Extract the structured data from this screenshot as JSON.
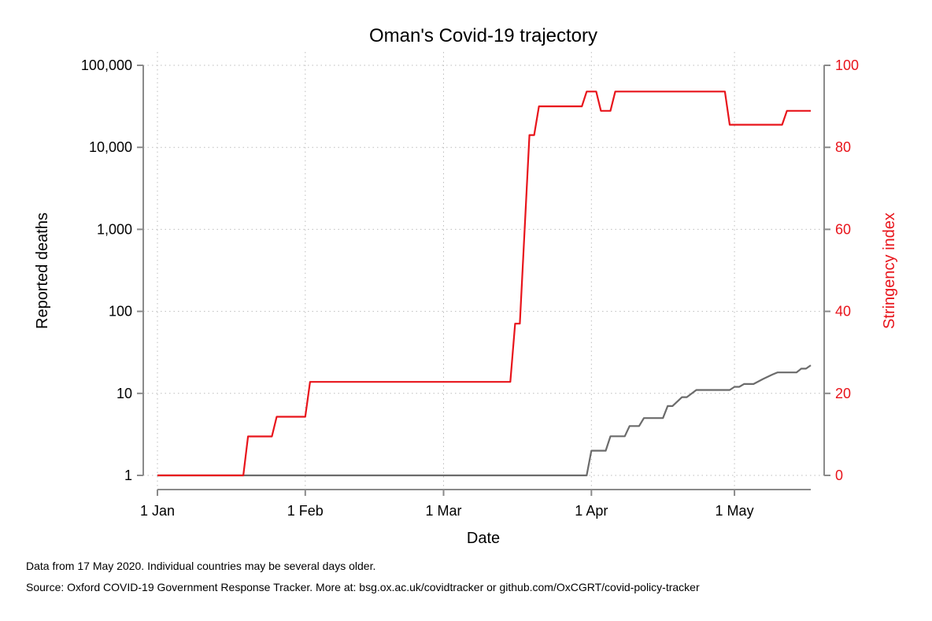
{
  "chart_data": {
    "type": "line",
    "title": "Oman's Covid-19 trajectory",
    "xlabel": "Date",
    "ylabel_left": "Reported deaths",
    "ylabel_right": "Stringency index",
    "x_ticks": [
      {
        "date": "2020-01-01",
        "label": "1 Jan"
      },
      {
        "date": "2020-02-01",
        "label": "1 Feb"
      },
      {
        "date": "2020-03-01",
        "label": "1 Mar"
      },
      {
        "date": "2020-04-01",
        "label": "1 Apr"
      },
      {
        "date": "2020-05-01",
        "label": "1 May"
      }
    ],
    "xlim": [
      "2020-01-01",
      "2020-05-17"
    ],
    "y_left_scale": "log",
    "y_left_lim": [
      1,
      100000
    ],
    "y_left_ticks": [
      {
        "value": 1,
        "label": "1"
      },
      {
        "value": 10,
        "label": "10"
      },
      {
        "value": 100,
        "label": "100"
      },
      {
        "value": 1000,
        "label": "1,000"
      },
      {
        "value": 10000,
        "label": "10,000"
      },
      {
        "value": 100000,
        "label": "100,000"
      }
    ],
    "y_right_lim": [
      0,
      100
    ],
    "y_right_ticks": [
      {
        "value": 0,
        "label": "0"
      },
      {
        "value": 20,
        "label": "20"
      },
      {
        "value": 40,
        "label": "40"
      },
      {
        "value": 60,
        "label": "60"
      },
      {
        "value": 80,
        "label": "80"
      },
      {
        "value": 100,
        "label": "100"
      }
    ],
    "grid": true,
    "series": [
      {
        "axis": "left",
        "color": "#6b6b6b",
        "points": [
          [
            "2020-01-01",
            1
          ],
          [
            "2020-03-31",
            1
          ],
          [
            "2020-04-01",
            2
          ],
          [
            "2020-04-03",
            2
          ],
          [
            "2020-04-04",
            2
          ],
          [
            "2020-04-05",
            3
          ],
          [
            "2020-04-08",
            3
          ],
          [
            "2020-04-09",
            4
          ],
          [
            "2020-04-11",
            4
          ],
          [
            "2020-04-12",
            5
          ],
          [
            "2020-04-16",
            5
          ],
          [
            "2020-04-17",
            7
          ],
          [
            "2020-04-18",
            7
          ],
          [
            "2020-04-20",
            9
          ],
          [
            "2020-04-21",
            9
          ],
          [
            "2020-04-23",
            11
          ],
          [
            "2020-04-27",
            11
          ],
          [
            "2020-04-29",
            11
          ],
          [
            "2020-04-30",
            11
          ],
          [
            "2020-05-01",
            12
          ],
          [
            "2020-05-02",
            12
          ],
          [
            "2020-05-03",
            13
          ],
          [
            "2020-05-05",
            13
          ],
          [
            "2020-05-07",
            15
          ],
          [
            "2020-05-09",
            17
          ],
          [
            "2020-05-10",
            18
          ],
          [
            "2020-05-14",
            18
          ],
          [
            "2020-05-15",
            20
          ],
          [
            "2020-05-16",
            20
          ],
          [
            "2020-05-17",
            22
          ]
        ]
      },
      {
        "axis": "right",
        "color": "#e8141b",
        "points": [
          [
            "2020-01-01",
            0
          ],
          [
            "2020-01-19",
            0
          ],
          [
            "2020-01-20",
            9.5
          ],
          [
            "2020-01-25",
            9.5
          ],
          [
            "2020-01-26",
            14.3
          ],
          [
            "2020-02-01",
            14.3
          ],
          [
            "2020-02-02",
            22.8
          ],
          [
            "2020-03-15",
            22.8
          ],
          [
            "2020-03-16",
            37
          ],
          [
            "2020-03-17",
            37
          ],
          [
            "2020-03-18",
            60
          ],
          [
            "2020-03-19",
            83
          ],
          [
            "2020-03-20",
            83
          ],
          [
            "2020-03-21",
            90
          ],
          [
            "2020-03-30",
            90
          ],
          [
            "2020-03-31",
            93.6
          ],
          [
            "2020-04-02",
            93.6
          ],
          [
            "2020-04-03",
            88.9
          ],
          [
            "2020-04-05",
            88.9
          ],
          [
            "2020-04-06",
            93.6
          ],
          [
            "2020-04-29",
            93.6
          ],
          [
            "2020-04-30",
            85.5
          ],
          [
            "2020-05-11",
            85.5
          ],
          [
            "2020-05-12",
            88.9
          ],
          [
            "2020-05-17",
            88.9
          ]
        ]
      }
    ]
  },
  "notes": {
    "line1": "Data from 17 May 2020. Individual countries may be several days older.",
    "line2": "Source: Oxford COVID-19 Government Response Tracker. More at: bsg.ox.ac.uk/covidtracker or github.com/OxCGRT/covid-policy-tracker"
  }
}
